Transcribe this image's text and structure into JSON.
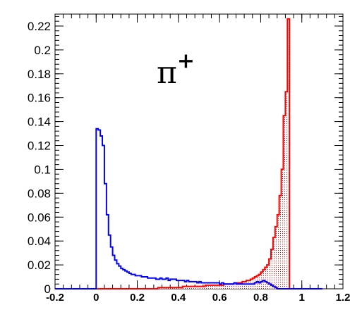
{
  "chart_data": {
    "type": "line",
    "title": "",
    "xlabel": "",
    "ylabel": "",
    "xlim": [
      -0.2,
      1.2
    ],
    "ylim": [
      0,
      0.23
    ],
    "x_ticks": [
      "-0.2",
      "0",
      "0.2",
      "0.4",
      "0.6",
      "0.8",
      "1",
      "1.2"
    ],
    "y_ticks": [
      "0",
      "0.02",
      "0.04",
      "0.06",
      "0.08",
      "0.1",
      "0.12",
      "0.14",
      "0.16",
      "0.18",
      "0.2",
      "0.22"
    ],
    "annotation": {
      "base": "π",
      "sup": "+"
    },
    "bin_width": 0.01,
    "bin_start": -0.2,
    "series": [
      {
        "color": "#0000ff",
        "fill": "none",
        "values": [
          0,
          0,
          0,
          0,
          0,
          0,
          0,
          0,
          0,
          0,
          0,
          0,
          0,
          0,
          0,
          0,
          0,
          0,
          0,
          0,
          0.134,
          0.133,
          0.128,
          0.12,
          0.088,
          0.062,
          0.045,
          0.035,
          0.028,
          0.024,
          0.021,
          0.019,
          0.017,
          0.016,
          0.015,
          0.014,
          0.013,
          0.012,
          0.012,
          0.011,
          0.011,
          0.011,
          0.01,
          0.01,
          0.01,
          0.009,
          0.009,
          0.009,
          0.009,
          0.008,
          0.008,
          0.009,
          0.008,
          0.008,
          0.009,
          0.007,
          0.008,
          0.008,
          0.008,
          0.007,
          0.007,
          0.007,
          0.007,
          0.006,
          0.007,
          0.006,
          0.006,
          0.006,
          0.006,
          0.005,
          0.006,
          0.005,
          0.005,
          0.005,
          0.005,
          0.005,
          0.005,
          0.005,
          0.005,
          0.005,
          0.004,
          0.005,
          0.004,
          0.004,
          0.004,
          0.004,
          0.004,
          0.005,
          0.004,
          0.004,
          0.004,
          0.004,
          0.004,
          0.004,
          0.004,
          0.004,
          0.004,
          0.005,
          0.006,
          0.005,
          0.006,
          0.007,
          0.006,
          0.005,
          0.004,
          0.003,
          0.002,
          0.001,
          0,
          0,
          0,
          0,
          0,
          0,
          0,
          0,
          0,
          0,
          0,
          0,
          0,
          0,
          0,
          0,
          0,
          0,
          0,
          0,
          0,
          0
        ]
      },
      {
        "color": "#ff0000",
        "fill": "hatched",
        "values": [
          0,
          0,
          0,
          0,
          0,
          0,
          0,
          0,
          0,
          0,
          0,
          0,
          0,
          0,
          0,
          0,
          0,
          0,
          0,
          0,
          0,
          0,
          0,
          0,
          0,
          0,
          0,
          0,
          0,
          0,
          0,
          0,
          0,
          0,
          0,
          0,
          0,
          0,
          0,
          0,
          0,
          0,
          0,
          0,
          0,
          0,
          0,
          0,
          0,
          0,
          0.001,
          0.001,
          0.001,
          0.001,
          0.001,
          0.001,
          0.001,
          0.001,
          0.001,
          0.001,
          0.001,
          0.001,
          0.002,
          0.002,
          0.002,
          0.002,
          0.002,
          0.002,
          0.002,
          0.002,
          0.002,
          0.002,
          0.002,
          0.003,
          0.003,
          0.003,
          0.003,
          0.003,
          0.003,
          0.003,
          0.003,
          0.003,
          0.004,
          0.004,
          0.004,
          0.004,
          0.004,
          0.005,
          0.005,
          0.005,
          0.005,
          0.006,
          0.006,
          0.007,
          0.007,
          0.008,
          0.009,
          0.01,
          0.011,
          0.012,
          0.014,
          0.016,
          0.018,
          0.02,
          0.025,
          0.033,
          0.043,
          0.052,
          0.062,
          0.078,
          0.1,
          0.145,
          0.165,
          0.226,
          0,
          0,
          0,
          0,
          0,
          0,
          0,
          0,
          0,
          0,
          0,
          0,
          0,
          0,
          0,
          0
        ]
      }
    ]
  }
}
